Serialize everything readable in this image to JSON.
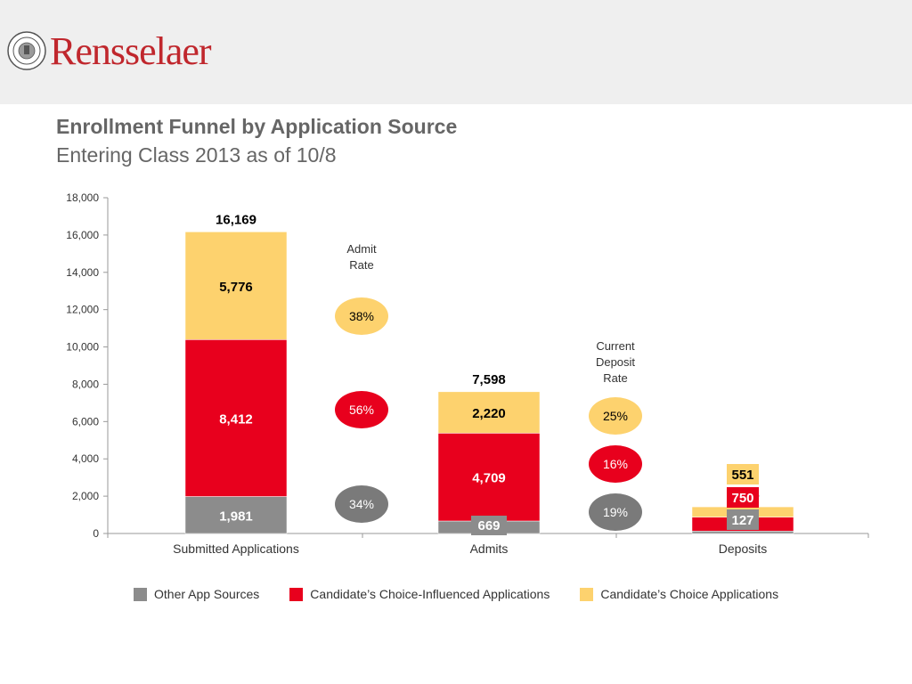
{
  "header": {
    "brand": "Rensselaer",
    "seal_text": "RENSSELAER POLYTECHNIC INSTITUTE 1824"
  },
  "colors": {
    "other": "#8c8c8c",
    "influenced": "#e8001d",
    "choice": "#fdd26e",
    "bubble_other": "#7a7a7a"
  },
  "chart_data": {
    "type": "bar",
    "stacked": true,
    "title": "Enrollment Funnel by Application Source",
    "subtitle": "Entering Class 2013 as of 10/8",
    "categories": [
      "Submitted Applications",
      "Admits",
      "Deposits"
    ],
    "series": [
      {
        "name": "Other App Sources",
        "values": [
          1981,
          669,
          127
        ]
      },
      {
        "name": "Candidate’s Choice-Influenced Applications",
        "values": [
          8412,
          4709,
          750
        ]
      },
      {
        "name": "Candidate’s Choice Applications",
        "values": [
          5776,
          2220,
          551
        ]
      }
    ],
    "totals": [
      "16,169",
      "7,598",
      "1,428"
    ],
    "value_labels": [
      [
        "1,981",
        "669",
        "127"
      ],
      [
        "8,412",
        "4,709",
        "750"
      ],
      [
        "5,776",
        "2,220",
        "551"
      ]
    ],
    "ylim": [
      0,
      18000
    ],
    "yticks": [
      "0",
      "2,000",
      "4,000",
      "6,000",
      "8,000",
      "10,000",
      "12,000",
      "14,000",
      "16,000",
      "18,000"
    ],
    "ytick_values": [
      0,
      2000,
      4000,
      6000,
      8000,
      10000,
      12000,
      14000,
      16000,
      18000
    ],
    "grid": false,
    "legend_position": "bottom",
    "rate_annotations": [
      {
        "label": [
          "Admit",
          "Rate"
        ],
        "rates": [
          "38%",
          "56%",
          "34%"
        ]
      },
      {
        "label": [
          "Current",
          "Deposit",
          "Rate"
        ],
        "rates": [
          "25%",
          "16%",
          "19%"
        ]
      }
    ]
  }
}
